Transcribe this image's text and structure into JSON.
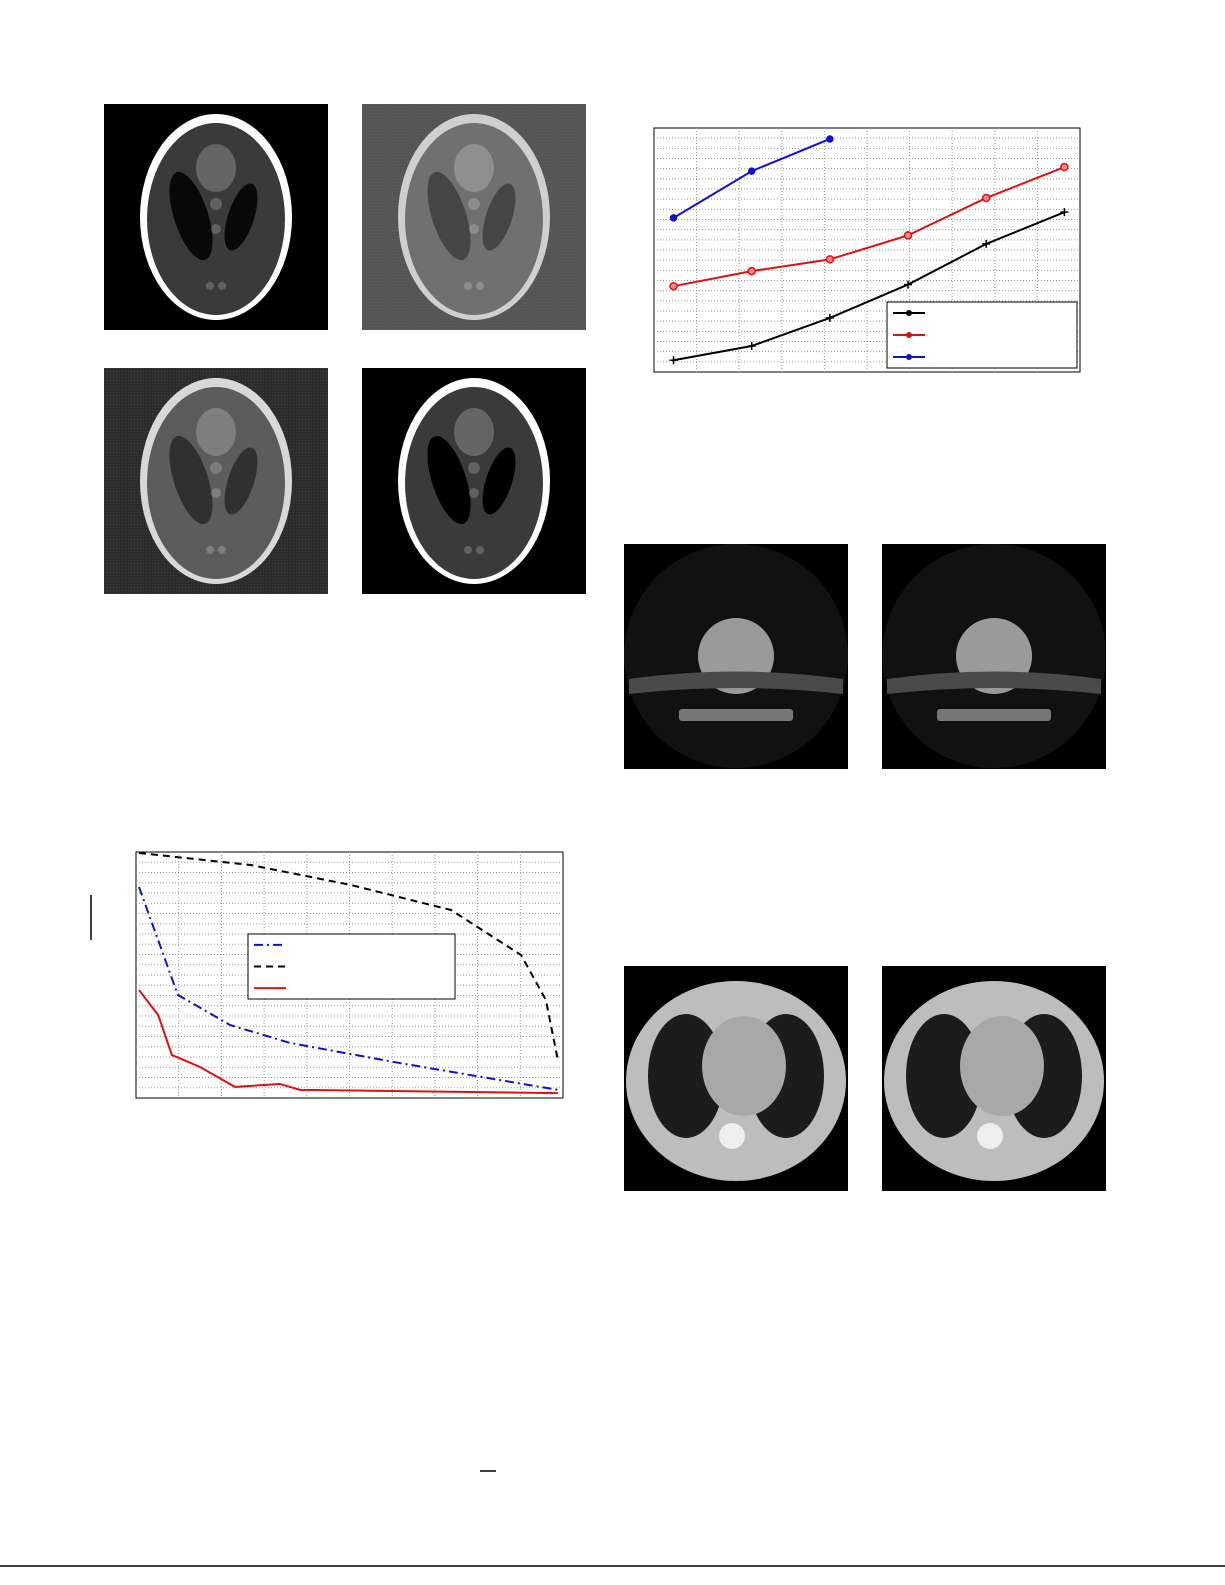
{
  "chart_data": [
    {
      "type": "line",
      "xlim": [
        0.75,
        6.2
      ],
      "ylim": [
        0,
        6
      ],
      "grid": true,
      "series": [
        {
          "color": "#000000",
          "marker": "plus",
          "x": [
            1,
            2,
            3,
            4,
            5,
            6
          ],
          "values": [
            0.29,
            0.64,
            1.33,
            2.15,
            3.15,
            3.93
          ]
        },
        {
          "color": "#e01010",
          "marker": "circle",
          "x": [
            1,
            2,
            3,
            4,
            5,
            6
          ],
          "values": [
            2.11,
            2.48,
            2.77,
            3.36,
            4.28,
            5.04
          ]
        },
        {
          "color": "#1010d0",
          "marker": "dot",
          "x": [
            1,
            2,
            3
          ],
          "values": [
            3.79,
            4.94,
            5.73
          ]
        }
      ]
    },
    {
      "type": "line",
      "xlim": [
        0,
        100
      ],
      "ylim": [
        0,
        10
      ],
      "grid": true,
      "series": [
        {
          "color": "#1010d0",
          "dash": "9 4 2 4",
          "x": [
            0.7,
            9.8,
            22,
            36,
            61.8,
            85.2,
            98.8
          ],
          "values": [
            8.58,
            4.19,
            2.97,
            2.24,
            1.42,
            0.73,
            0.33
          ]
        },
        {
          "color": "#000000",
          "dash": "7 5",
          "x": [
            0.7,
            26.9,
            50.3,
            73.8,
            90.2,
            96.0,
            98.8
          ],
          "values": [
            9.96,
            9.47,
            8.66,
            7.64,
            5.81,
            3.98,
            1.54
          ]
        },
        {
          "color": "#e01010",
          "x": [
            0.7,
            5.2,
            8.4,
            15.0,
            23.2,
            33.7,
            38.4,
            98.8
          ],
          "values": [
            4.39,
            3.37,
            1.75,
            1.26,
            0.45,
            0.57,
            0.33,
            0.2
          ]
        }
      ]
    }
  ]
}
